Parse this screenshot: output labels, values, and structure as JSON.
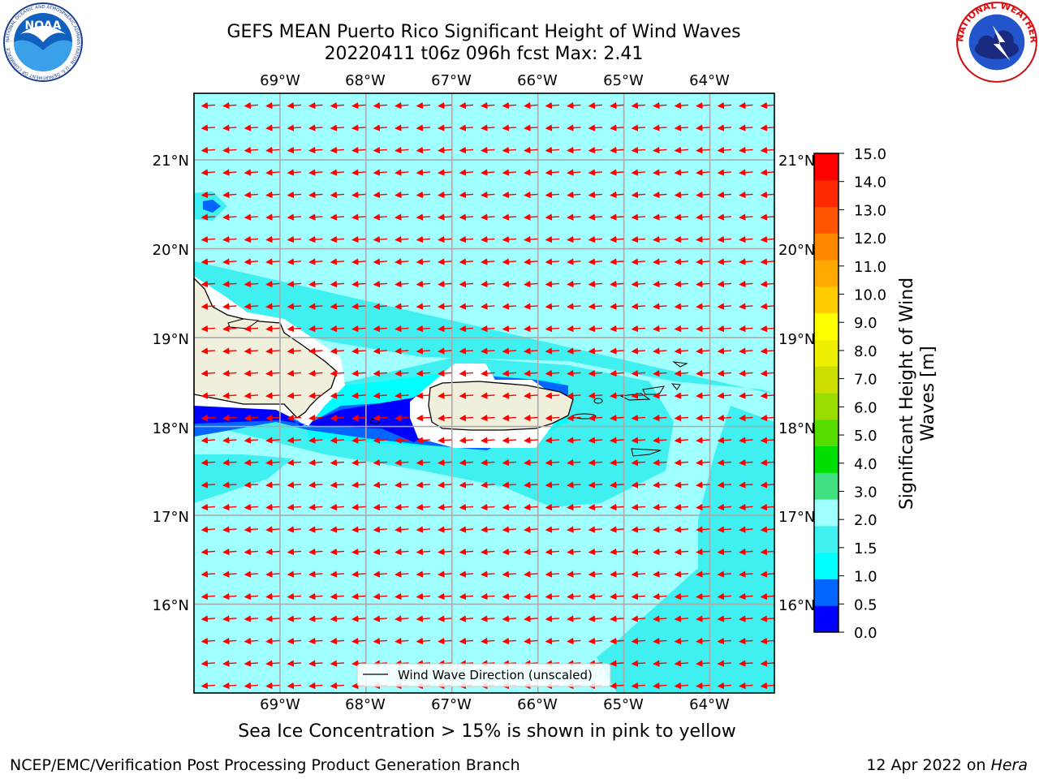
{
  "title": {
    "line1": "GEFS MEAN Puerto Rico Significant Height of Wind Waves",
    "line2": "20220411 t06z 096h fcst   Max: 2.41"
  },
  "axes": {
    "lon_labels": [
      "69°W",
      "68°W",
      "67°W",
      "66°W",
      "65°W",
      "64°W"
    ],
    "lat_labels": [
      "21°N",
      "20°N",
      "19°N",
      "18°N",
      "17°N",
      "16°N"
    ]
  },
  "legend": {
    "label": "Wind Wave Direction (unscaled)"
  },
  "colorbar": {
    "label_line1": "Significant Height of Wind",
    "label_line2": "Waves [m]",
    "ticks": [
      "15.0",
      "14.0",
      "13.0",
      "12.0",
      "11.0",
      "10.0",
      "9.0",
      "8.0",
      "7.0",
      "6.0",
      "5.0",
      "4.0",
      "3.0",
      "2.0",
      "1.5",
      "1.0",
      "0.5",
      "0.0"
    ],
    "colors": [
      "#0000ff",
      "#0066ff",
      "#00ffff",
      "#40f0f0",
      "#a0ffff",
      "#40e080",
      "#00dd00",
      "#55dd00",
      "#99dd00",
      "#ccdd00",
      "#eeee00",
      "#ffff00",
      "#ffcc00",
      "#ffaa00",
      "#ff8800",
      "#ff5500",
      "#ff2a00",
      "#ff0000"
    ]
  },
  "subtitle": "Sea Ice Concentration > 15% is shown in pink to yellow",
  "footer": {
    "left": "NCEP/EMC/Verification Post Processing Product Generation Branch",
    "right_date": "12 Apr 2022 on ",
    "right_host": "Hera"
  },
  "logos": {
    "left": "noaa-logo",
    "right": "national-weather-service-logo",
    "left_ring_text": "NATIONAL OCEANIC AND ATMOSPHERIC ADMINISTRATION · U.S. DEPARTMENT OF COMMERCE",
    "right_ring_text": "NATIONAL WEATHER SERVICE"
  },
  "chart_data": {
    "type": "map",
    "region": "Puerto Rico",
    "lon_range": [
      -70.0,
      -63.25
    ],
    "lat_range": [
      15.0,
      21.75
    ],
    "max_value": 2.41,
    "units": "m",
    "wind_wave_direction": "westward (towards west, slightly south)"
  }
}
